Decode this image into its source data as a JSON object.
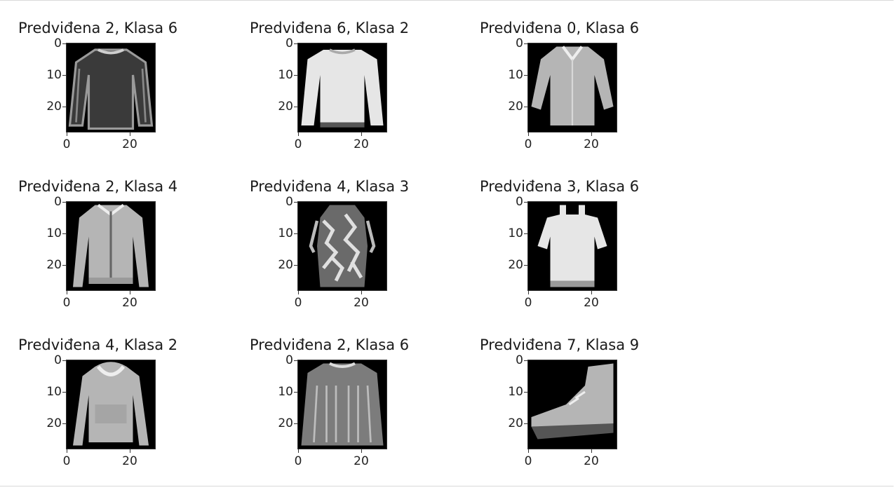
{
  "chart_data": {
    "type": "image-grid",
    "rows": 3,
    "cols": 3,
    "yticks": [
      "0",
      "10",
      "20"
    ],
    "xticks": [
      "0",
      "20"
    ],
    "panels": [
      {
        "title": "Predviđena 2, Klasa 6",
        "predicted": 2,
        "true": 6,
        "item_icon": "pullover-dark-icon"
      },
      {
        "title": "Predviđena 6, Klasa 2",
        "predicted": 6,
        "true": 2,
        "item_icon": "long-sleeve-top-icon"
      },
      {
        "title": "Predviđena 0, Klasa 6",
        "predicted": 0,
        "true": 6,
        "item_icon": "blouse-icon"
      },
      {
        "title": "Predviđena 2, Klasa 4",
        "predicted": 2,
        "true": 4,
        "item_icon": "zip-jacket-icon"
      },
      {
        "title": "Predviđena 4, Klasa 3",
        "predicted": 4,
        "true": 3,
        "item_icon": "patterned-dress-icon"
      },
      {
        "title": "Predviđena 3, Klasa 6",
        "predicted": 3,
        "true": 6,
        "item_icon": "cold-shoulder-top-icon"
      },
      {
        "title": "Predviđena 4, Klasa 2",
        "predicted": 4,
        "true": 2,
        "item_icon": "hoodie-icon"
      },
      {
        "title": "Predviđena 2, Klasa 6",
        "predicted": 2,
        "true": 6,
        "item_icon": "sweater-icon"
      },
      {
        "title": "Predviđena 7, Klasa 9",
        "predicted": 7,
        "true": 9,
        "item_icon": "sneaker-icon"
      }
    ],
    "colors": {
      "background": "#000000",
      "light": "#e6e6e6",
      "mid": "#b5b5b5",
      "dark": "#555555"
    }
  }
}
